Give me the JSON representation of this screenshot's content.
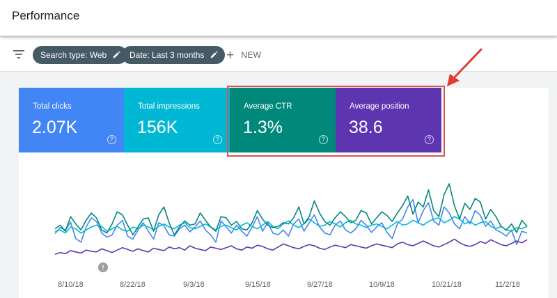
{
  "header": {
    "title": "Performance"
  },
  "filters": {
    "chips": [
      {
        "label": "Search type: Web"
      },
      {
        "label": "Date: Last 3 months"
      }
    ],
    "new_label": "NEW"
  },
  "metrics": [
    {
      "label": "Total clicks",
      "value": "2.07K",
      "color": "#4285f4"
    },
    {
      "label": "Total impressions",
      "value": "156K",
      "color": "#00b8d4"
    },
    {
      "label": "Average CTR",
      "value": "1.3%",
      "color": "#00897b"
    },
    {
      "label": "Average position",
      "value": "38.6",
      "color": "#5e35b1"
    }
  ],
  "annotation_marker": "!",
  "chart_data": {
    "type": "line",
    "x_tick_labels": [
      "8/10/18",
      "8/22/18",
      "9/3/18",
      "9/15/18",
      "9/27/18",
      "10/9/18",
      "10/21/18",
      "11/2/18"
    ],
    "series": [
      {
        "color": "#4285f4",
        "values": [
          44,
          54,
          50,
          63,
          36,
          30,
          55,
          70,
          64,
          45,
          38,
          42,
          58,
          66,
          40,
          35,
          50,
          62,
          48,
          35,
          62,
          57,
          42,
          40,
          52,
          58,
          47,
          55,
          65,
          50,
          42,
          30,
          65,
          55,
          45,
          58,
          48,
          40,
          55,
          72,
          48,
          62,
          45,
          42,
          50,
          40,
          60,
          68,
          48,
          62,
          75,
          55,
          45,
          42,
          58,
          65,
          50,
          45,
          52,
          66,
          58,
          46,
          55,
          62,
          46,
          36,
          60,
          68,
          88,
          100,
          62,
          82,
          95,
          65,
          58,
          88,
          78,
          60,
          52,
          72,
          60,
          82,
          74,
          56,
          65,
          50,
          46,
          40,
          50,
          26,
          48,
          45
        ]
      },
      {
        "color": "#00b8d4",
        "values": [
          48,
          50,
          45,
          55,
          52,
          45,
          50,
          55,
          58,
          56,
          48,
          52,
          56,
          50,
          48,
          55,
          52,
          58,
          55,
          50,
          56,
          60,
          55,
          52,
          58,
          62,
          54,
          52,
          56,
          60,
          55,
          50,
          56,
          58,
          54,
          50,
          58,
          62,
          56,
          52,
          58,
          64,
          56,
          52,
          60,
          65,
          58,
          54,
          60,
          68,
          62,
          56,
          58,
          64,
          60,
          55,
          62,
          66,
          60,
          58,
          54,
          58,
          60,
          56,
          52,
          58,
          64,
          58,
          60,
          66,
          62,
          58,
          64,
          68,
          70,
          62,
          66,
          72,
          68,
          60,
          64,
          58,
          62,
          64,
          56,
          52,
          56,
          50,
          48,
          54,
          52,
          56
        ]
      },
      {
        "color": "#00897b",
        "values": [
          52,
          58,
          48,
          72,
          60,
          50,
          66,
          78,
          70,
          50,
          45,
          60,
          80,
          75,
          58,
          42,
          55,
          68,
          70,
          48,
          75,
          88,
          62,
          42,
          55,
          65,
          58,
          60,
          78,
          66,
          55,
          48,
          72,
          70,
          58,
          64,
          52,
          50,
          62,
          82,
          68,
          58,
          54,
          56,
          62,
          60,
          70,
          88,
          60,
          72,
          98,
          78,
          64,
          58,
          70,
          80,
          72,
          62,
          66,
          82,
          78,
          60,
          70,
          80,
          74,
          64,
          78,
          90,
          106,
          76,
          96,
          88,
          116,
          82,
          72,
          108,
          126,
          90,
          68,
          94,
          84,
          102,
          96,
          68,
          84,
          72,
          56,
          50,
          60,
          46,
          66,
          56
        ]
      },
      {
        "color": "#5e35b1",
        "values": [
          10,
          13,
          11,
          16,
          14,
          12,
          17,
          15,
          14,
          19,
          16,
          13,
          17,
          21,
          18,
          15,
          19,
          16,
          14,
          20,
          18,
          16,
          22,
          19,
          21,
          17,
          24,
          20,
          18,
          16,
          22,
          20,
          18,
          21,
          24,
          19,
          17,
          22,
          20,
          25,
          23,
          19,
          17,
          22,
          27,
          24,
          21,
          19,
          23,
          26,
          24,
          20,
          18,
          22,
          25,
          23,
          21,
          26,
          24,
          22,
          20,
          24,
          27,
          25,
          23,
          21,
          27,
          30,
          26,
          24,
          28,
          32,
          28,
          24,
          22,
          26,
          30,
          35,
          29,
          25,
          23,
          26,
          31,
          28,
          34,
          30,
          26,
          24,
          28,
          32,
          29,
          34
        ]
      }
    ]
  }
}
